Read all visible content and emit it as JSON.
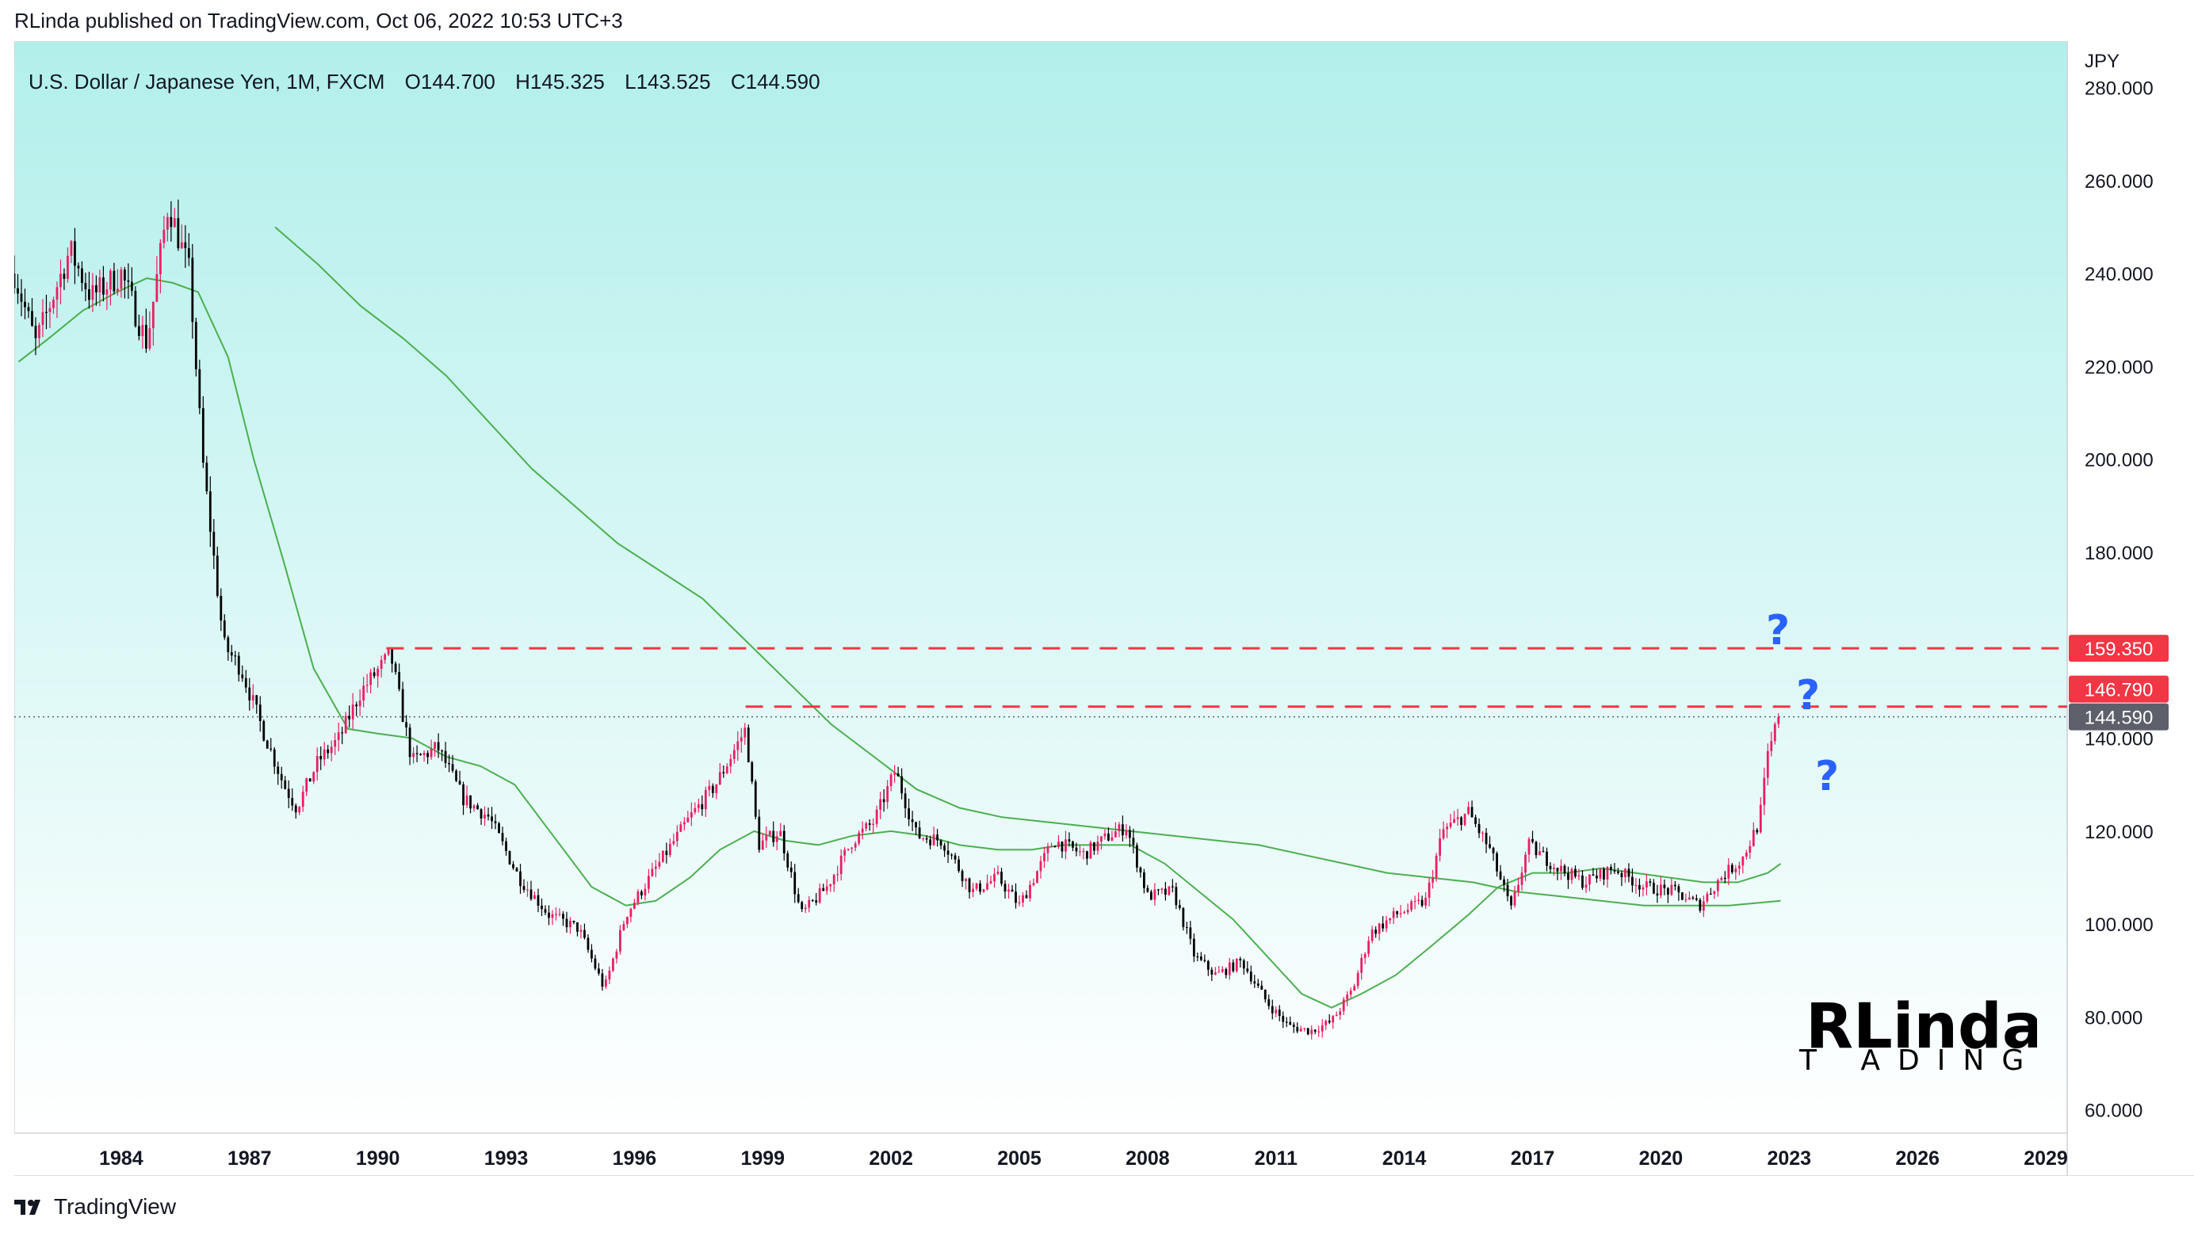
{
  "header": {
    "published_text": "RLinda published on TradingView.com, Oct 06, 2022 10:53 UTC+3"
  },
  "legend": {
    "symbol": "U.S. Dollar / Japanese Yen, 1M, FXCM",
    "open": "O144.700",
    "high": "H145.325",
    "low": "L143.525",
    "close": "C144.590"
  },
  "axis_unit": "JPY",
  "annotations": {
    "question_mark": "?"
  },
  "watermark": {
    "main": "RLinda",
    "sub": "T ADING"
  },
  "footer": {
    "brand": "TradingView"
  },
  "colors": {
    "background_top": "#b2efeb",
    "background_bottom": "#ffffff",
    "candle_up": "#e91e63",
    "candle_down": "#000000",
    "ma_line": "#4caf50",
    "level_line": "#f23645",
    "current_price_tag": "#5d606b",
    "question_marks": "#2962ff"
  },
  "chart_data": {
    "type": "line",
    "title": "U.S. Dollar / Japanese Yen, 1M, FXCM",
    "ylabel": "JPY",
    "ylim": [
      55,
      290
    ],
    "xlim": [
      1981.5,
      2029.5
    ],
    "y_ticks": [
      "60.000",
      "80.000",
      "100.000",
      "120.000",
      "140.000",
      "160.000",
      "180.000",
      "200.000",
      "220.000",
      "240.000",
      "260.000",
      "280.000"
    ],
    "x_ticks": [
      "1984",
      "1987",
      "1990",
      "1993",
      "1996",
      "1999",
      "2002",
      "2005",
      "2008",
      "2011",
      "2014",
      "2017",
      "2020",
      "2023",
      "2026",
      "2029"
    ],
    "price_series": {
      "name": "USDJPY monthly close (approx.)",
      "x": [
        1981.5,
        1982.0,
        1982.8,
        1983.3,
        1984.0,
        1984.6,
        1985.1,
        1985.6,
        1985.9,
        1986.4,
        1986.8,
        1987.3,
        1987.8,
        1988.1,
        1988.6,
        1989.1,
        1989.6,
        1990.3,
        1990.8,
        1991.4,
        1992.0,
        1992.6,
        1993.3,
        1994.0,
        1994.7,
        1995.3,
        1995.8,
        1996.5,
        1997.3,
        1997.9,
        1998.6,
        1998.9,
        1999.4,
        1999.9,
        2000.5,
        2001.1,
        2001.6,
        2002.1,
        2002.6,
        2003.2,
        2003.9,
        2004.5,
        2005.0,
        2005.8,
        2006.5,
        2007.1,
        2007.5,
        2008.0,
        2008.6,
        2009.1,
        2009.6,
        2010.2,
        2010.8,
        2011.3,
        2011.8,
        2012.3,
        2012.8,
        2013.2,
        2013.8,
        2014.5,
        2014.9,
        2015.5,
        2016.0,
        2016.5,
        2016.9,
        2017.6,
        2018.2,
        2018.9,
        2019.6,
        2020.3,
        2020.9,
        2021.4,
        2021.9,
        2022.3,
        2022.5,
        2022.75
      ],
      "close": [
        240,
        225,
        245,
        235,
        240,
        225,
        255,
        240,
        200,
        160,
        155,
        142,
        130,
        125,
        135,
        140,
        150,
        158,
        135,
        138,
        127,
        123,
        110,
        102,
        99,
        86,
        102,
        112,
        123,
        130,
        142,
        117,
        120,
        102,
        108,
        118,
        122,
        133,
        119,
        118,
        107,
        110,
        104,
        118,
        115,
        119,
        121,
        106,
        107,
        93,
        89,
        92,
        83,
        78,
        77,
        79,
        86,
        98,
        102,
        105,
        120,
        124,
        116,
        103,
        117,
        112,
        109,
        112,
        108,
        107,
        104,
        110,
        114,
        122,
        136,
        144.59
      ]
    },
    "ma_series": [
      {
        "name": "Moving average (short)",
        "x": [
          1981.6,
          1982.3,
          1983.1,
          1983.9,
          1984.6,
          1985.2,
          1985.8,
          1986.5,
          1987.1,
          1987.8,
          1988.5,
          1989.3,
          1990.0,
          1990.8,
          1991.6,
          1992.4,
          1993.2,
          1994.1,
          1995.0,
          1995.8,
          1996.5,
          1997.3,
          1998.0,
          1998.8,
          1999.5,
          2000.3,
          2001.1,
          2002.0,
          2002.8,
          2003.6,
          2004.5,
          2005.3,
          2006.0,
          2006.8,
          2007.6,
          2008.4,
          2009.2,
          2010.0,
          2010.8,
          2011.6,
          2012.3,
          2013.0,
          2013.8,
          2014.6,
          2015.5,
          2016.2,
          2017.0,
          2017.8,
          2018.6,
          2019.4,
          2020.2,
          2021.0,
          2021.8,
          2022.5,
          2022.8
        ],
        "values": [
          221,
          226,
          232,
          236,
          239,
          238,
          236,
          222,
          200,
          178,
          155,
          142,
          141,
          140,
          136,
          134,
          130,
          119,
          108,
          104,
          105,
          110,
          116,
          120,
          118,
          117,
          119,
          120,
          119,
          117,
          116,
          116,
          117,
          117,
          117,
          113,
          107,
          101,
          93,
          85,
          82,
          85,
          89,
          95,
          102,
          108,
          111,
          111,
          112,
          111,
          110,
          109,
          109,
          111,
          113
        ]
      },
      {
        "name": "Moving average (long)",
        "x": [
          1987.6,
          1988.6,
          1989.6,
          1990.6,
          1991.6,
          1992.6,
          1993.6,
          1994.6,
          1995.6,
          1996.6,
          1997.6,
          1998.6,
          1999.6,
          2000.6,
          2001.6,
          2002.6,
          2003.6,
          2004.6,
          2005.6,
          2006.6,
          2007.6,
          2008.6,
          2009.6,
          2010.6,
          2011.6,
          2012.6,
          2013.6,
          2014.6,
          2015.6,
          2016.6,
          2017.6,
          2018.6,
          2019.6,
          2020.6,
          2021.6,
          2022.8
        ],
        "values": [
          250,
          242,
          233,
          226,
          218,
          208,
          198,
          190,
          182,
          176,
          170,
          161,
          152,
          143,
          136,
          129,
          125,
          123,
          122,
          121,
          120,
          119,
          118,
          117,
          115,
          113,
          111,
          110,
          109,
          107,
          106,
          105,
          104,
          104,
          104,
          105
        ]
      }
    ],
    "horizontal_levels": [
      {
        "label": "159.350",
        "value": 159.35,
        "start_x": 1990.2
      },
      {
        "label": "146.790",
        "value": 146.79,
        "start_x": 1998.6
      }
    ],
    "current_price": {
      "label": "144.590",
      "value": 144.59
    }
  }
}
